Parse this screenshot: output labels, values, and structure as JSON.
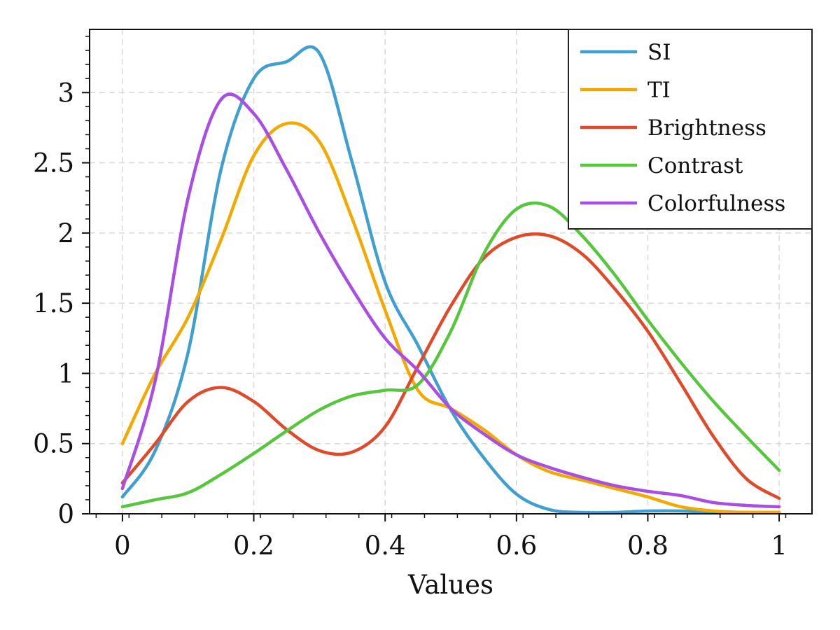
{
  "chart_data": {
    "type": "line",
    "title": "",
    "xlabel": "Values",
    "ylabel": "",
    "xlim": [
      -0.05,
      1.05
    ],
    "ylim": [
      0,
      3.45
    ],
    "grid": true,
    "legend_position": "top-right",
    "x_ticks": [
      0,
      0.2,
      0.4,
      0.6,
      0.8,
      1
    ],
    "x_tick_labels": [
      "0",
      "0.2",
      "0.4",
      "0.6",
      "0.8",
      "1"
    ],
    "y_ticks": [
      0,
      0.5,
      1,
      1.5,
      2,
      2.5,
      3
    ],
    "y_tick_labels": [
      "0",
      "0.5",
      "1",
      "1.5",
      "2",
      "2.5",
      "3"
    ],
    "x": [
      0,
      0.05,
      0.1,
      0.15,
      0.2,
      0.25,
      0.3,
      0.35,
      0.4,
      0.45,
      0.5,
      0.55,
      0.6,
      0.65,
      0.7,
      0.75,
      0.8,
      0.85,
      0.9,
      0.95,
      1.0
    ],
    "series": [
      {
        "name": "SI",
        "color": "#3fa0cf",
        "values": [
          0.12,
          0.45,
          1.15,
          2.45,
          3.1,
          3.22,
          3.28,
          2.5,
          1.65,
          1.2,
          0.74,
          0.4,
          0.14,
          0.03,
          0.01,
          0.01,
          0.02,
          0.02,
          0.01,
          0.01,
          0.01
        ]
      },
      {
        "name": "TI",
        "color": "#f2a900",
        "values": [
          0.5,
          1.0,
          1.4,
          1.95,
          2.55,
          2.78,
          2.65,
          2.1,
          1.45,
          0.88,
          0.75,
          0.6,
          0.42,
          0.3,
          0.24,
          0.18,
          0.12,
          0.05,
          0.02,
          0.01,
          0.01
        ]
      },
      {
        "name": "Brightness",
        "color": "#df4a2a",
        "values": [
          0.22,
          0.5,
          0.8,
          0.9,
          0.8,
          0.6,
          0.45,
          0.44,
          0.62,
          1.05,
          1.48,
          1.82,
          1.97,
          1.98,
          1.85,
          1.6,
          1.3,
          0.93,
          0.55,
          0.25,
          0.11
        ]
      },
      {
        "name": "Contrast",
        "color": "#56c73d",
        "values": [
          0.05,
          0.1,
          0.15,
          0.28,
          0.43,
          0.59,
          0.74,
          0.84,
          0.88,
          0.92,
          1.3,
          1.85,
          2.17,
          2.19,
          1.98,
          1.7,
          1.38,
          1.08,
          0.8,
          0.55,
          0.31
        ]
      },
      {
        "name": "Colorfulness",
        "color": "#a94ee3",
        "values": [
          0.18,
          0.95,
          2.25,
          2.95,
          2.85,
          2.45,
          2.0,
          1.6,
          1.25,
          1.02,
          0.75,
          0.57,
          0.42,
          0.33,
          0.26,
          0.2,
          0.16,
          0.13,
          0.08,
          0.06,
          0.05
        ]
      }
    ]
  }
}
